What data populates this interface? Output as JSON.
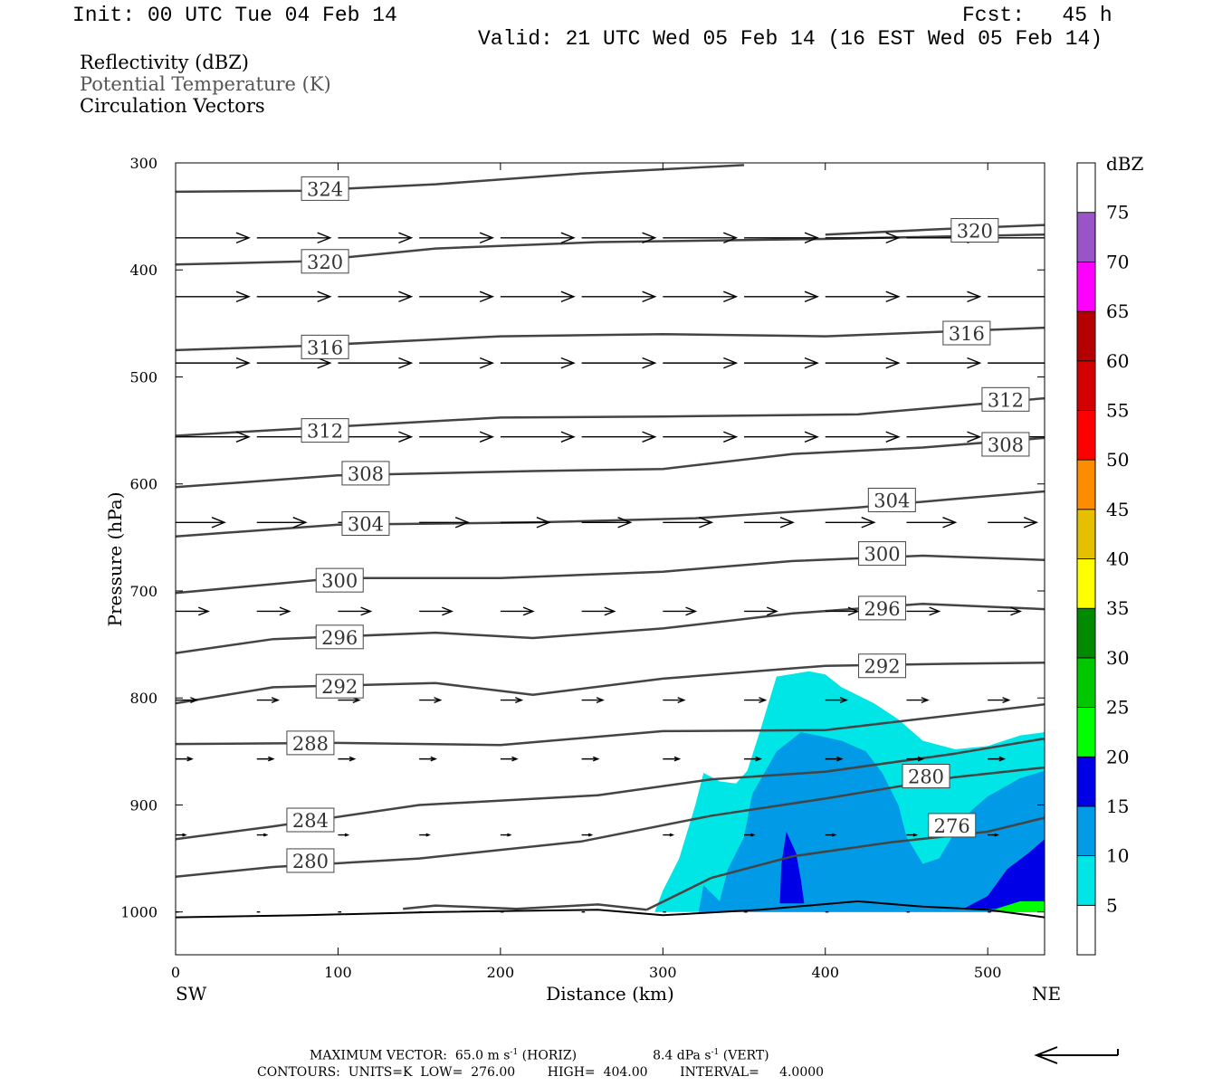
{
  "header": {
    "init": "Init: 00 UTC Tue 04 Feb 14",
    "fcst": "Fcst:   45 h",
    "valid": "Valid: 21 UTC Wed 05 Feb 14 (16 EST Wed 05 Feb 14)"
  },
  "variables": [
    {
      "label": "Reflectivity (dBZ)",
      "color": "#000000"
    },
    {
      "label": "Potential Temperature (K)",
      "color": "#555555"
    },
    {
      "label": "Circulation Vectors",
      "color": "#000000"
    }
  ],
  "footer": {
    "max_vector_a": "MAXIMUM VECTOR:  65.0 m s",
    "max_vector_b": " (HORIZ)",
    "max_vector_c": "8.4 dPa s",
    "max_vector_d": " (VERT)",
    "sup": "-1",
    "contours": "CONTOURS:  UNITS=K  LOW=  276.00        HIGH=  404.00        INTERVAL=     4.0000"
  },
  "chart_data": {
    "type": "cross-section",
    "xlabel": "Distance (km)",
    "ylabel": "Pressure (hPa)",
    "xlim": [
      0,
      535
    ],
    "ylim": [
      1040,
      300
    ],
    "x_ticks": [
      0,
      100,
      200,
      300,
      400,
      500
    ],
    "y_ticks": [
      300,
      400,
      500,
      600,
      700,
      800,
      900,
      1000
    ],
    "endpoints": {
      "left": "SW",
      "right": "NE"
    },
    "colorbar": {
      "unit": "dBZ",
      "levels": [
        5,
        10,
        15,
        20,
        25,
        30,
        35,
        40,
        45,
        50,
        55,
        60,
        65,
        70,
        75
      ],
      "colors": [
        "#ffffff",
        "#00e6e6",
        "#009ae6",
        "#0000e6",
        "#00ff00",
        "#00c800",
        "#008a00",
        "#ffff00",
        "#e6c000",
        "#ff8c00",
        "#ff0000",
        "#d40000",
        "#b40000",
        "#ff00ff",
        "#9955c8",
        "#ffffff"
      ]
    },
    "theta_contours": [
      {
        "level": 324,
        "points": [
          [
            0,
            327
          ],
          [
            80,
            326
          ],
          [
            160,
            320
          ],
          [
            250,
            310
          ],
          [
            350,
            302
          ],
          [
            350,
            302
          ]
        ],
        "labels": [
          [
            92,
            324
          ]
        ]
      },
      {
        "level": 320,
        "points": [
          [
            0,
            395
          ],
          [
            80,
            392
          ],
          [
            160,
            380
          ],
          [
            260,
            374
          ],
          [
            400,
            371
          ],
          [
            535,
            367
          ]
        ],
        "labels": [
          [
            92,
            392
          ]
        ]
      },
      {
        "level": 320,
        "points": [
          [
            400,
            367
          ],
          [
            470,
            362
          ],
          [
            535,
            358
          ]
        ],
        "labels": [
          [
            492,
            363
          ]
        ]
      },
      {
        "level": 316,
        "points": [
          [
            0,
            475
          ],
          [
            80,
            471
          ],
          [
            200,
            462
          ],
          [
            300,
            460
          ],
          [
            400,
            462
          ],
          [
            535,
            454
          ]
        ],
        "labels": [
          [
            92,
            472
          ],
          [
            487,
            459
          ]
        ]
      },
      {
        "level": 312,
        "points": [
          [
            0,
            555
          ],
          [
            80,
            548
          ],
          [
            200,
            538
          ],
          [
            300,
            537
          ],
          [
            420,
            535
          ],
          [
            535,
            520
          ]
        ],
        "labels": [
          [
            92,
            550
          ],
          [
            511,
            521
          ]
        ]
      },
      {
        "level": 308,
        "points": [
          [
            0,
            603
          ],
          [
            100,
            592
          ],
          [
            220,
            588
          ],
          [
            300,
            586
          ],
          [
            380,
            572
          ],
          [
            460,
            566
          ],
          [
            535,
            557
          ]
        ],
        "labels": [
          [
            117,
            590
          ],
          [
            511,
            563
          ]
        ]
      },
      {
        "level": 304,
        "points": [
          [
            0,
            649
          ],
          [
            100,
            638
          ],
          [
            220,
            636
          ],
          [
            320,
            632
          ],
          [
            420,
            622
          ],
          [
            480,
            614
          ],
          [
            535,
            607
          ]
        ],
        "labels": [
          [
            117,
            637
          ],
          [
            441,
            615
          ]
        ]
      },
      {
        "level": 300,
        "points": [
          [
            0,
            702
          ],
          [
            100,
            688
          ],
          [
            200,
            688
          ],
          [
            300,
            682
          ],
          [
            380,
            672
          ],
          [
            460,
            667
          ],
          [
            535,
            671
          ]
        ],
        "labels": [
          [
            101,
            690
          ],
          [
            435,
            665
          ]
        ]
      },
      {
        "level": 296,
        "points": [
          [
            0,
            758
          ],
          [
            60,
            745
          ],
          [
            160,
            739
          ],
          [
            220,
            744
          ],
          [
            300,
            735
          ],
          [
            380,
            721
          ],
          [
            460,
            712
          ],
          [
            535,
            717
          ]
        ],
        "labels": [
          [
            101,
            743
          ],
          [
            435,
            716
          ]
        ]
      },
      {
        "level": 292,
        "points": [
          [
            0,
            805
          ],
          [
            60,
            790
          ],
          [
            160,
            786
          ],
          [
            220,
            797
          ],
          [
            300,
            782
          ],
          [
            400,
            770
          ],
          [
            480,
            768
          ],
          [
            535,
            767
          ]
        ],
        "labels": [
          [
            101,
            789
          ],
          [
            435,
            770
          ]
        ]
      },
      {
        "level": 288,
        "points": [
          [
            0,
            843
          ],
          [
            100,
            842
          ],
          [
            200,
            844
          ],
          [
            300,
            831
          ],
          [
            400,
            830
          ],
          [
            535,
            806
          ]
        ],
        "labels": [
          [
            83,
            842
          ]
        ]
      },
      {
        "level": 284,
        "points": [
          [
            0,
            932
          ],
          [
            60,
            920
          ],
          [
            150,
            900
          ],
          [
            260,
            891
          ],
          [
            330,
            876
          ],
          [
            400,
            869
          ],
          [
            480,
            852
          ],
          [
            535,
            838
          ]
        ],
        "labels": [
          [
            83,
            914
          ]
        ]
      },
      {
        "level": 280,
        "points": [
          [
            0,
            967
          ],
          [
            60,
            958
          ],
          [
            150,
            950
          ],
          [
            250,
            934
          ],
          [
            330,
            910
          ],
          [
            400,
            894
          ],
          [
            480,
            874
          ],
          [
            535,
            865
          ]
        ],
        "labels": [
          [
            83,
            952
          ],
          [
            462,
            873
          ]
        ]
      },
      {
        "level": 276,
        "points": [
          [
            290,
            998
          ],
          [
            330,
            968
          ],
          [
            380,
            948
          ],
          [
            440,
            935
          ],
          [
            500,
            925
          ],
          [
            535,
            912
          ]
        ],
        "labels": [
          [
            478,
            919
          ]
        ]
      },
      {
        "level": 276,
        "points": [
          [
            140,
            997
          ],
          [
            160,
            994
          ],
          [
            210,
            997
          ],
          [
            260,
            993
          ],
          [
            290,
            998
          ]
        ],
        "labels": []
      }
    ],
    "vector_rows": [
      {
        "p": 370,
        "u": 45
      },
      {
        "p": 425,
        "u": 45
      },
      {
        "p": 487,
        "u": 45
      },
      {
        "p": 556,
        "u": 45
      },
      {
        "p": 636,
        "u": 30
      },
      {
        "p": 719,
        "u": 20
      },
      {
        "p": 802,
        "u": 13
      },
      {
        "p": 857,
        "u": 10
      },
      {
        "p": 928,
        "u": 6
      },
      {
        "p": 1000,
        "u": 2
      }
    ],
    "vector_x": [
      0,
      50,
      100,
      150,
      200,
      250,
      300,
      350,
      400,
      450,
      500
    ],
    "reflectivity": [
      {
        "dbz": 5,
        "points": [
          [
            295,
            1000
          ],
          [
            300,
            980
          ],
          [
            310,
            950
          ],
          [
            320,
            900
          ],
          [
            325,
            870
          ],
          [
            335,
            878
          ],
          [
            345,
            880
          ],
          [
            352,
            868
          ],
          [
            360,
            830
          ],
          [
            370,
            780
          ],
          [
            390,
            775
          ],
          [
            400,
            778
          ],
          [
            410,
            790
          ],
          [
            430,
            805
          ],
          [
            445,
            820
          ],
          [
            460,
            840
          ],
          [
            480,
            848
          ],
          [
            500,
            845
          ],
          [
            520,
            835
          ],
          [
            535,
            832
          ],
          [
            535,
            1000
          ]
        ]
      },
      {
        "dbz": 10,
        "points": [
          [
            322,
            1000
          ],
          [
            325,
            975
          ],
          [
            335,
            990
          ],
          [
            340,
            960
          ],
          [
            350,
            930
          ],
          [
            355,
            890
          ],
          [
            370,
            850
          ],
          [
            385,
            832
          ],
          [
            395,
            835
          ],
          [
            410,
            840
          ],
          [
            425,
            850
          ],
          [
            435,
            870
          ],
          [
            445,
            900
          ],
          [
            450,
            930
          ],
          [
            460,
            955
          ],
          [
            470,
            950
          ],
          [
            480,
            925
          ],
          [
            490,
            905
          ],
          [
            500,
            892
          ],
          [
            520,
            875
          ],
          [
            535,
            868
          ],
          [
            535,
            1000
          ]
        ]
      },
      {
        "dbz": 15,
        "points": [
          [
            372,
            992
          ],
          [
            373,
            955
          ],
          [
            376,
            925
          ],
          [
            382,
            945
          ],
          [
            385,
            970
          ],
          [
            387,
            992
          ]
        ]
      },
      {
        "dbz": 15,
        "points": [
          [
            485,
            997
          ],
          [
            500,
            985
          ],
          [
            512,
            960
          ],
          [
            525,
            945
          ],
          [
            535,
            932
          ],
          [
            535,
            997
          ]
        ]
      },
      {
        "dbz": 20,
        "points": [
          [
            505,
            997
          ],
          [
            520,
            990
          ],
          [
            535,
            990
          ],
          [
            535,
            1000
          ],
          [
            505,
            1000
          ]
        ]
      }
    ],
    "terrain": [
      [
        0,
        1005
      ],
      [
        80,
        1003
      ],
      [
        160,
        1000
      ],
      [
        260,
        998
      ],
      [
        300,
        1003
      ],
      [
        360,
        998
      ],
      [
        420,
        990
      ],
      [
        460,
        995
      ],
      [
        500,
        998
      ],
      [
        535,
        1005
      ]
    ]
  }
}
